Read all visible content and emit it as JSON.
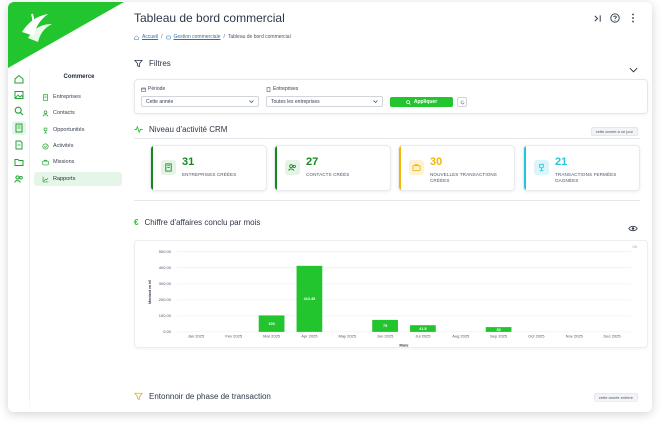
{
  "colors": {
    "brand_green": "#22c52e",
    "dark_green": "#118a1d",
    "blue": "#1e88e5",
    "gold": "#f2b705",
    "cyan": "#26c6da"
  },
  "header": {
    "title": "Tableau de bord commercial",
    "breadcrumb": [
      {
        "label": "Accueil",
        "link": true,
        "icon": "home-icon"
      },
      {
        "label": "Gestion commerciale",
        "link": true,
        "icon": "layers-icon"
      },
      {
        "label": "Tableau de bord commercial",
        "link": false
      }
    ],
    "icons": [
      "collapse-icon",
      "help-icon",
      "more-vertical-icon"
    ]
  },
  "sidebar": {
    "title": "Commerce",
    "items": [
      {
        "label": "Entreprises",
        "icon": "building-icon",
        "active": false
      },
      {
        "label": "Contacts",
        "icon": "user-icon",
        "active": false
      },
      {
        "label": "Opportunités",
        "icon": "trophy-icon",
        "active": false
      },
      {
        "label": "Activités",
        "icon": "check-circle-icon",
        "active": false
      },
      {
        "label": "Missions",
        "icon": "briefcase-icon",
        "active": false
      },
      {
        "label": "Rapports",
        "icon": "chart-icon",
        "active": true
      }
    ]
  },
  "rail": {
    "icons": [
      "home-icon",
      "image-icon",
      "search-icon",
      "building-icon",
      "document-icon",
      "folder-icon",
      "users-icon"
    ],
    "active_index": 3
  },
  "filters": {
    "title": "Filtres",
    "periode_label": "Période",
    "periode_value": "Cette année",
    "entreprises_label": "Entreprises",
    "entreprises_value": "Toutes les entreprises",
    "apply_label": "Appliquer"
  },
  "activity": {
    "title": "Niveau d'activité CRM",
    "chip": "cette année à ce jour",
    "stats": [
      {
        "value": "31",
        "label": "ENTREPRISES CRÉÉES",
        "color": "#118a1d",
        "icon": "building-icon"
      },
      {
        "value": "27",
        "label": "CONTACTS CRÉÉS",
        "color": "#118a1d",
        "icon": "users-icon"
      },
      {
        "value": "30",
        "label": "NOUVELLES TRANSACTIONS CRÉÉES",
        "color": "#f2b705",
        "icon": "briefcase-icon"
      },
      {
        "value": "21",
        "label": "TRANSACTIONS FERMÉES GAGNÉES",
        "color": "#26c6da",
        "icon": "trophy-icon"
      }
    ]
  },
  "revenue": {
    "title": "Chiffre d'affaires conclu par mois",
    "legend_glyph": "00",
    "chart_data": {
      "type": "bar",
      "categories": [
        "Jan 2025",
        "Fév 2025",
        "Mar 2025",
        "Apr 2025",
        "May 2025",
        "Jun 2025",
        "Jul 2025",
        "Aug 2025",
        "Sep 2025",
        "Oct 2025",
        "Nov 2025",
        "Dec 2025"
      ],
      "values": [
        0,
        0,
        103,
        412.45,
        0,
        75,
        41.8,
        0,
        30,
        0,
        0,
        0
      ],
      "data_labels": [
        "",
        "",
        "103",
        "412.45",
        "",
        "75",
        "41.8",
        "",
        "30",
        "",
        "",
        ""
      ],
      "yticks": [
        "0.00",
        "100.00",
        "200.00",
        "300.00",
        "400.00",
        "500.00"
      ],
      "ylim": [
        0,
        500
      ],
      "xlabel": "Mois",
      "ylabel": "Montant en k€",
      "grid": true,
      "bar_color": "#22c52e"
    }
  },
  "funnel": {
    "title": "Entonnoir de phase de transaction",
    "chip": "cette année entière"
  }
}
